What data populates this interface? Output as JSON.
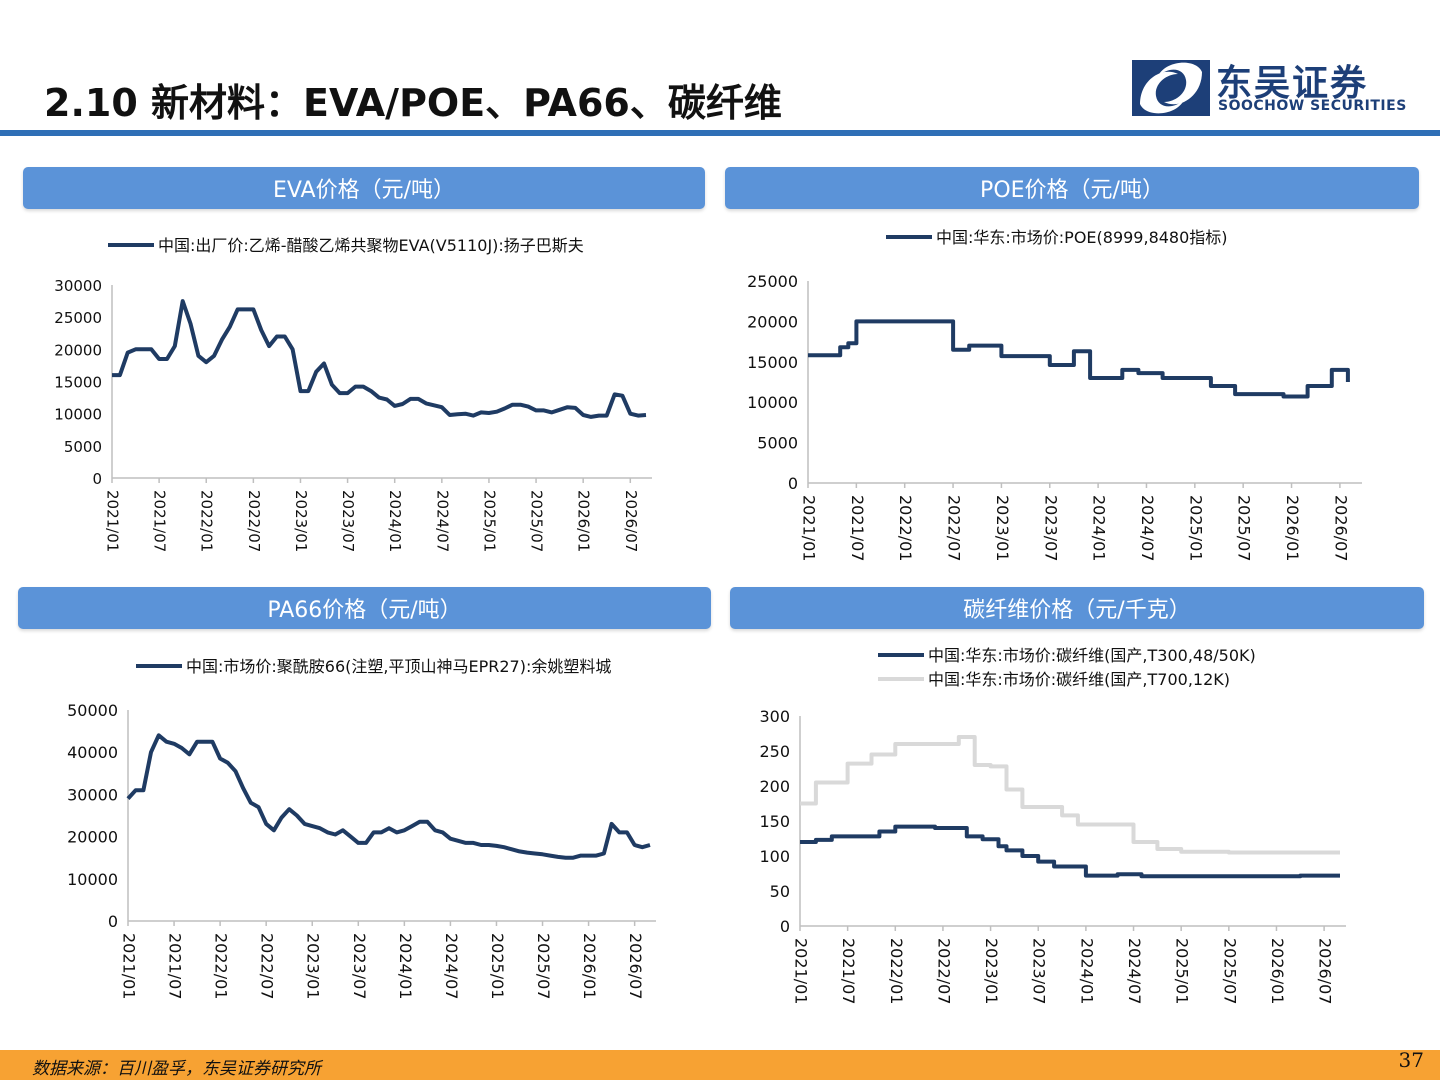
{
  "header": {
    "title": "2.10 新材料：EVA/POE、PA66、碳纤维",
    "logo_cn": "东吴证券",
    "logo_en": "SOOCHOW SECURITIES"
  },
  "colors": {
    "accent": "#2f6fb6",
    "panel": "#5b93d8",
    "line_dark": "#1f3b63",
    "line_light": "#d9d9d9",
    "footer": "#f7a233"
  },
  "icons": {
    "logo": "soochow-logo-icon"
  },
  "footer": {
    "source": "数据来源：百川盈孚，东吴证券研究所",
    "page": "37"
  },
  "panels": [
    {
      "heading": "EVA价格（元/吨）"
    },
    {
      "heading": "POE价格（元/吨）"
    },
    {
      "heading": "PA66价格（元/吨）"
    },
    {
      "heading": "碳纤维价格（元/千克）"
    }
  ],
  "chart_data": [
    {
      "type": "line",
      "title": "EVA价格（元/吨）",
      "x_ticks": [
        "2021/01",
        "2021/07",
        "2022/01",
        "2022/07",
        "2023/01",
        "2023/07",
        "2024/01",
        "2024/07",
        "2025/01",
        "2025/07",
        "2026/01",
        "2026/07"
      ],
      "ylim": [
        0,
        30000
      ],
      "y_ticks": [
        0,
        5000,
        10000,
        15000,
        20000,
        25000,
        30000
      ],
      "legend": "top",
      "series": [
        {
          "name": "中国:出厂价:乙烯-醋酸乙烯共聚物EVA(V5110J):扬子巴斯夫",
          "color": "#1f3b63",
          "x": [
            "2021/01",
            "2021/02",
            "2021/03",
            "2021/04",
            "2021/05",
            "2021/06",
            "2021/07",
            "2021/08",
            "2021/09",
            "2021/10",
            "2021/11",
            "2021/12",
            "2022/01",
            "2022/02",
            "2022/03",
            "2022/04",
            "2022/05",
            "2022/06",
            "2022/07",
            "2022/08",
            "2022/09",
            "2022/10",
            "2022/11",
            "2022/12",
            "2023/01",
            "2023/02",
            "2023/03",
            "2023/04",
            "2023/05",
            "2023/06",
            "2023/07",
            "2023/08",
            "2023/09",
            "2023/10",
            "2023/11",
            "2023/12",
            "2024/01",
            "2024/02",
            "2024/03",
            "2024/04",
            "2024/05",
            "2024/06",
            "2024/07",
            "2024/08",
            "2024/09",
            "2024/10",
            "2024/11",
            "2024/12",
            "2025/01",
            "2025/02",
            "2025/03",
            "2025/04",
            "2025/05",
            "2025/06",
            "2025/07",
            "2025/08",
            "2025/09",
            "2025/10",
            "2025/11",
            "2025/12",
            "2026/01",
            "2026/02",
            "2026/03",
            "2026/04",
            "2026/05",
            "2026/06",
            "2026/07",
            "2026/08",
            "2026/09"
          ],
          "y": [
            16000,
            16000,
            19500,
            20000,
            20000,
            20000,
            18500,
            18500,
            20500,
            27500,
            24000,
            19000,
            18000,
            19000,
            21500,
            23500,
            26200,
            26200,
            26200,
            23000,
            20500,
            22000,
            22000,
            20000,
            13500,
            13500,
            16500,
            17800,
            14500,
            13200,
            13200,
            14200,
            14200,
            13500,
            12500,
            12200,
            11200,
            11500,
            12300,
            12300,
            11600,
            11300,
            11000,
            9800,
            9900,
            10000,
            9700,
            10200,
            10100,
            10300,
            10800,
            11400,
            11400,
            11100,
            10500,
            10500,
            10200,
            10600,
            11000,
            10900,
            9800,
            9500,
            9700,
            9700,
            13000,
            12800,
            10000,
            9700,
            9800
          ]
        }
      ]
    },
    {
      "type": "line",
      "title": "POE价格（元/吨）",
      "x_ticks": [
        "2021/01",
        "2021/07",
        "2022/01",
        "2022/07",
        "2023/01",
        "2023/07",
        "2024/01",
        "2024/07",
        "2025/01",
        "2025/07",
        "2026/01",
        "2026/07"
      ],
      "ylim": [
        0,
        25000
      ],
      "y_ticks": [
        0,
        5000,
        10000,
        15000,
        20000,
        25000
      ],
      "legend": "top",
      "series": [
        {
          "name": "中国:华东:市场价:POE(8999,8480指标)",
          "color": "#1f3b63",
          "x": [
            "2021/01",
            "2021/03",
            "2021/05",
            "2021/06",
            "2021/07",
            "2022/05",
            "2022/07",
            "2022/09",
            "2023/01",
            "2023/06",
            "2023/07",
            "2023/10",
            "2023/12",
            "2024/04",
            "2024/06",
            "2024/09",
            "2025/01",
            "2025/03",
            "2025/06",
            "2025/12",
            "2026/02",
            "2026/03",
            "2026/06",
            "2026/08"
          ],
          "y": [
            15800,
            15800,
            16800,
            17300,
            20000,
            20000,
            16500,
            17000,
            15700,
            15700,
            14600,
            16300,
            13000,
            14000,
            13600,
            13000,
            13000,
            12000,
            11000,
            10700,
            10700,
            12000,
            14000,
            12500
          ]
        }
      ]
    },
    {
      "type": "line",
      "title": "PA66价格（元/吨）",
      "x_ticks": [
        "2021/01",
        "2021/07",
        "2022/01",
        "2022/07",
        "2023/01",
        "2023/07",
        "2024/01",
        "2024/07",
        "2025/01",
        "2025/07",
        "2026/01",
        "2026/07"
      ],
      "ylim": [
        0,
        50000
      ],
      "y_ticks": [
        0,
        10000,
        20000,
        30000,
        40000,
        50000
      ],
      "legend": "top",
      "series": [
        {
          "name": "中国:市场价:聚酰胺66(注塑,平顶山神马EPR27):余姚塑料城",
          "color": "#1f3b63",
          "x": [
            "2021/01",
            "2021/02",
            "2021/03",
            "2021/04",
            "2021/05",
            "2021/06",
            "2021/07",
            "2021/08",
            "2021/09",
            "2021/10",
            "2021/11",
            "2021/12",
            "2022/01",
            "2022/02",
            "2022/03",
            "2022/04",
            "2022/05",
            "2022/06",
            "2022/07",
            "2022/08",
            "2022/09",
            "2022/10",
            "2022/11",
            "2022/12",
            "2023/01",
            "2023/02",
            "2023/03",
            "2023/04",
            "2023/05",
            "2023/06",
            "2023/07",
            "2023/08",
            "2023/09",
            "2023/10",
            "2023/11",
            "2023/12",
            "2024/01",
            "2024/02",
            "2024/03",
            "2024/04",
            "2024/05",
            "2024/06",
            "2024/07",
            "2024/08",
            "2024/09",
            "2024/10",
            "2024/11",
            "2024/12",
            "2025/01",
            "2025/02",
            "2025/03",
            "2025/04",
            "2025/05",
            "2025/06",
            "2025/07",
            "2025/08",
            "2025/09",
            "2025/10",
            "2025/11",
            "2025/12",
            "2026/01",
            "2026/02",
            "2026/03",
            "2026/04",
            "2026/05",
            "2026/06",
            "2026/07",
            "2026/08",
            "2026/09"
          ],
          "y": [
            29000,
            31000,
            31000,
            40000,
            44000,
            42500,
            42000,
            41000,
            39500,
            42500,
            42500,
            42500,
            38500,
            37500,
            35500,
            31500,
            28000,
            27000,
            23000,
            21500,
            24500,
            26500,
            25000,
            23000,
            22500,
            22000,
            21000,
            20500,
            21500,
            20000,
            18500,
            18500,
            21000,
            21000,
            22000,
            21000,
            21500,
            22500,
            23500,
            23500,
            21500,
            21000,
            19500,
            19000,
            18500,
            18500,
            18000,
            18000,
            17800,
            17500,
            17000,
            16500,
            16200,
            16000,
            15800,
            15500,
            15200,
            15000,
            15000,
            15500,
            15500,
            15500,
            16000,
            23000,
            21000,
            21000,
            18000,
            17500,
            18000
          ]
        }
      ]
    },
    {
      "type": "line",
      "title": "碳纤维价格（元/千克）",
      "x_ticks": [
        "2021/01",
        "2021/07",
        "2022/01",
        "2022/07",
        "2023/01",
        "2023/07",
        "2024/01",
        "2024/07",
        "2025/01",
        "2025/07",
        "2026/01",
        "2026/07"
      ],
      "ylim": [
        0,
        300
      ],
      "y_ticks": [
        0,
        50,
        100,
        150,
        200,
        250,
        300
      ],
      "legend": "top",
      "series": [
        {
          "name": "中国:华东:市场价:碳纤维(国产,T300,48/50K)",
          "color": "#1f3b63",
          "x": [
            "2021/01",
            "2021/03",
            "2021/05",
            "2021/11",
            "2022/01",
            "2022/06",
            "2022/10",
            "2022/12",
            "2023/02",
            "2023/03",
            "2023/05",
            "2023/07",
            "2023/09",
            "2024/01",
            "2024/05",
            "2024/08",
            "2025/01",
            "2025/07",
            "2026/01",
            "2026/04",
            "2026/09"
          ],
          "y": [
            120,
            123,
            128,
            135,
            142,
            140,
            128,
            124,
            114,
            108,
            100,
            92,
            85,
            72,
            74,
            71,
            71,
            71,
            71,
            72,
            72
          ]
        },
        {
          "name": "中国:华东:市场价:碳纤维(国产,T700,12K)",
          "color": "#d9d9d9",
          "x": [
            "2021/01",
            "2021/03",
            "2021/07",
            "2021/10",
            "2022/01",
            "2022/09",
            "2022/11",
            "2023/01",
            "2023/03",
            "2023/05",
            "2023/07",
            "2023/10",
            "2023/12",
            "2024/03",
            "2024/07",
            "2024/10",
            "2025/01",
            "2025/07",
            "2026/09"
          ],
          "y": [
            175,
            205,
            232,
            245,
            260,
            270,
            230,
            228,
            195,
            170,
            170,
            158,
            145,
            145,
            120,
            110,
            106,
            105,
            105
          ]
        }
      ]
    }
  ]
}
